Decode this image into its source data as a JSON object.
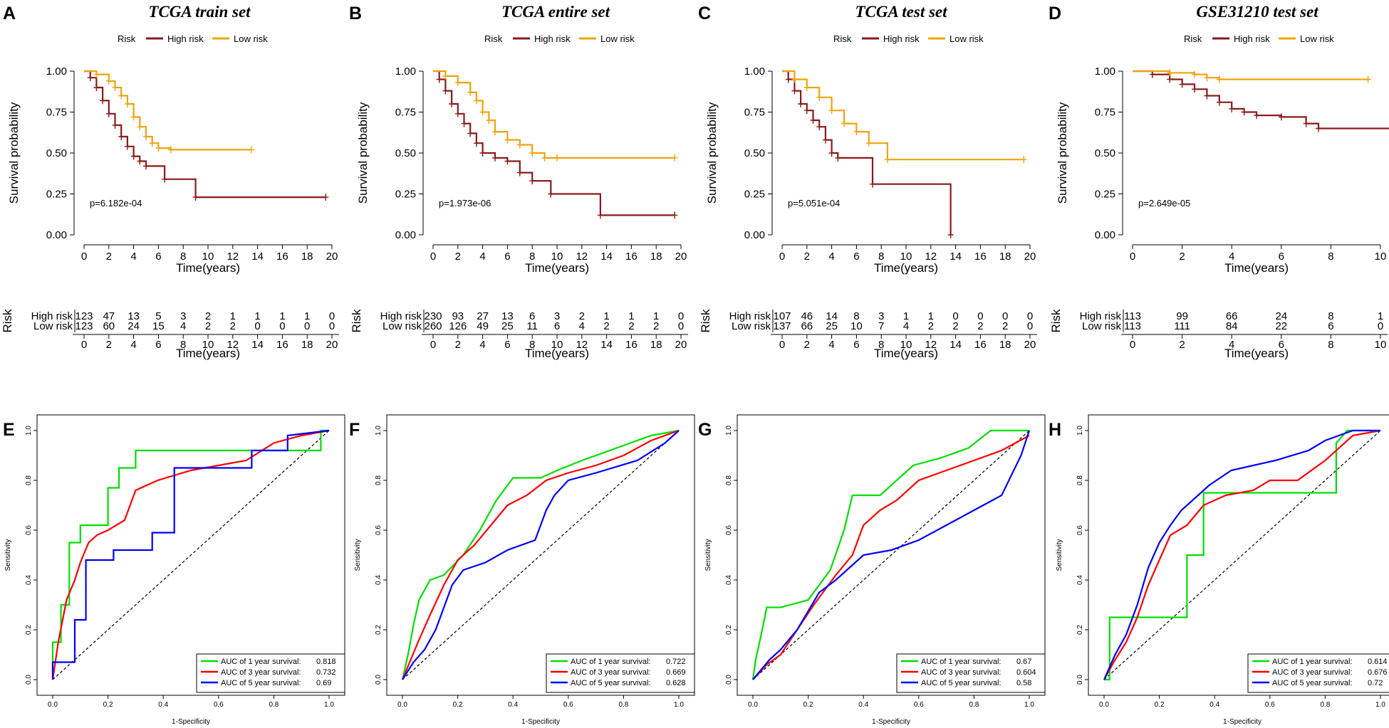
{
  "colors": {
    "high": "#8b1a1a",
    "low": "#f0a30a",
    "green": "#00e000",
    "red": "#ff0000",
    "blue": "#0000ff",
    "ink": "#000000"
  },
  "chart_data": [
    {
      "type": "line",
      "panel": "A",
      "title": "TCGA train set",
      "legend": {
        "title": "Risk",
        "high": "High risk",
        "low": "Low risk"
      },
      "xlabel": "Time(years)",
      "ylabel": "Survival probability",
      "xlim": [
        0,
        20
      ],
      "ylim": [
        0,
        1
      ],
      "xticks": [
        0,
        2,
        4,
        6,
        8,
        10,
        12,
        14,
        16,
        18,
        20
      ],
      "yticks": [
        "0.00",
        "0.25",
        "0.50",
        "0.75",
        "1.00"
      ],
      "pvalue": "p=6.182e-04",
      "series": [
        {
          "name": "High risk",
          "x": [
            0,
            0.5,
            1,
            1.5,
            2,
            2.5,
            3,
            3.5,
            4,
            4.5,
            5,
            6.5,
            9,
            19.5
          ],
          "y": [
            1,
            0.96,
            0.9,
            0.82,
            0.74,
            0.67,
            0.6,
            0.54,
            0.48,
            0.45,
            0.42,
            0.34,
            0.23,
            0.23
          ]
        },
        {
          "name": "Low risk",
          "x": [
            0,
            1,
            2,
            2.5,
            3,
            3.5,
            4,
            4.5,
            5,
            5.5,
            6,
            7,
            13.5
          ],
          "y": [
            1,
            0.98,
            0.94,
            0.9,
            0.85,
            0.8,
            0.72,
            0.66,
            0.6,
            0.56,
            0.53,
            0.52,
            0.52
          ]
        }
      ],
      "risk_table": {
        "label": "Risk",
        "high_label": "High risk",
        "low_label": "Low risk",
        "times": [
          0,
          2,
          4,
          6,
          8,
          10,
          12,
          14,
          16,
          18,
          20
        ],
        "high": [
          "123",
          "47",
          "13",
          "5",
          "3",
          "2",
          "1",
          "1",
          "1",
          "1",
          "0"
        ],
        "low": [
          "123",
          "60",
          "24",
          "15",
          "4",
          "2",
          "2",
          "0",
          "0",
          "0",
          "0"
        ],
        "xlabel": "Time(years)"
      }
    },
    {
      "type": "line",
      "panel": "B",
      "title": "TCGA entire set",
      "legend": {
        "title": "Risk",
        "high": "High risk",
        "low": "Low risk"
      },
      "xlabel": "Time(years)",
      "ylabel": "Survival probability",
      "xlim": [
        0,
        20
      ],
      "ylim": [
        0,
        1
      ],
      "xticks": [
        0,
        2,
        4,
        6,
        8,
        10,
        12,
        14,
        16,
        18,
        20
      ],
      "yticks": [
        "0.00",
        "0.25",
        "0.50",
        "0.75",
        "1.00"
      ],
      "pvalue": "p=1.973e-06",
      "series": [
        {
          "name": "High risk",
          "x": [
            0,
            0.5,
            1,
            1.5,
            2,
            2.5,
            3,
            3.5,
            4,
            5,
            6,
            7,
            8,
            9.5,
            13.5,
            19.5
          ],
          "y": [
            1,
            0.95,
            0.88,
            0.8,
            0.74,
            0.68,
            0.62,
            0.56,
            0.5,
            0.47,
            0.45,
            0.38,
            0.33,
            0.25,
            0.12,
            0.12
          ]
        },
        {
          "name": "Low risk",
          "x": [
            0,
            1,
            2,
            3,
            3.5,
            4,
            4.5,
            5,
            6,
            7,
            8,
            9,
            10,
            19.5
          ],
          "y": [
            1,
            0.97,
            0.93,
            0.87,
            0.82,
            0.75,
            0.7,
            0.63,
            0.58,
            0.55,
            0.5,
            0.47,
            0.47,
            0.47
          ]
        }
      ],
      "risk_table": {
        "label": "Risk",
        "high_label": "High risk",
        "low_label": "Low risk",
        "times": [
          0,
          2,
          4,
          6,
          8,
          10,
          12,
          14,
          16,
          18,
          20
        ],
        "high": [
          "230",
          "93",
          "27",
          "13",
          "6",
          "3",
          "2",
          "1",
          "1",
          "1",
          "0"
        ],
        "low": [
          "260",
          "126",
          "49",
          "25",
          "11",
          "6",
          "4",
          "2",
          "2",
          "2",
          "0"
        ],
        "xlabel": "Time(years)"
      }
    },
    {
      "type": "line",
      "panel": "C",
      "title": "TCGA test set",
      "legend": {
        "title": "Risk",
        "high": "High risk",
        "low": "Low risk"
      },
      "xlabel": "Time(years)",
      "ylabel": "Survival probability",
      "xlim": [
        0,
        20
      ],
      "ylim": [
        0,
        1
      ],
      "xticks": [
        0,
        2,
        4,
        6,
        8,
        10,
        12,
        14,
        16,
        18,
        20
      ],
      "yticks": [
        "0.00",
        "0.25",
        "0.50",
        "0.75",
        "1.00"
      ],
      "pvalue": "p=5.051e-04",
      "series": [
        {
          "name": "High risk",
          "x": [
            0,
            0.5,
            1,
            1.5,
            2,
            2.5,
            3,
            3.5,
            4,
            4.5,
            7.3,
            13.6
          ],
          "y": [
            1,
            0.95,
            0.88,
            0.8,
            0.76,
            0.7,
            0.66,
            0.58,
            0.5,
            0.47,
            0.31,
            0
          ]
        },
        {
          "name": "Low risk",
          "x": [
            0,
            1,
            2,
            3,
            4,
            5,
            6,
            7,
            8.5,
            19.5
          ],
          "y": [
            1,
            0.95,
            0.9,
            0.84,
            0.76,
            0.68,
            0.63,
            0.56,
            0.46,
            0.46
          ]
        }
      ],
      "risk_table": {
        "label": "Risk",
        "high_label": "High risk",
        "low_label": "Low risk",
        "times": [
          0,
          2,
          4,
          6,
          8,
          10,
          12,
          14,
          16,
          18,
          20
        ],
        "high": [
          "107",
          "46",
          "14",
          "8",
          "3",
          "1",
          "1",
          "0",
          "0",
          "0",
          "0"
        ],
        "low": [
          "137",
          "66",
          "25",
          "10",
          "7",
          "4",
          "2",
          "2",
          "2",
          "2",
          "0"
        ],
        "xlabel": "Time(years)"
      }
    },
    {
      "type": "line",
      "panel": "D",
      "title": "GSE31210 test set",
      "legend": {
        "title": "Risk",
        "high": "High risk",
        "low": "Low risk"
      },
      "xlabel": "Time(years)",
      "ylabel": "Survival probability",
      "xlim": [
        0,
        10
      ],
      "ylim": [
        0,
        1
      ],
      "xticks": [
        0,
        2,
        4,
        6,
        8,
        10
      ],
      "yticks": [
        "0.00",
        "0.25",
        "0.50",
        "0.75",
        "1.00"
      ],
      "pvalue": "p=2.649e-05",
      "series": [
        {
          "name": "High risk",
          "x": [
            0,
            0.8,
            1.5,
            2,
            2.5,
            3,
            3.5,
            4,
            4.5,
            5,
            6,
            7,
            7.5,
            10.5
          ],
          "y": [
            1,
            0.98,
            0.95,
            0.92,
            0.89,
            0.85,
            0.81,
            0.77,
            0.75,
            0.73,
            0.72,
            0.68,
            0.65,
            0.64
          ]
        },
        {
          "name": "Low risk",
          "x": [
            0,
            1.5,
            2.5,
            3,
            3.5,
            9.5
          ],
          "y": [
            1,
            0.99,
            0.98,
            0.96,
            0.95,
            0.95
          ]
        }
      ],
      "risk_table": {
        "label": "Risk",
        "high_label": "High risk",
        "low_label": "Low risk",
        "times": [
          0,
          2,
          4,
          6,
          8,
          10
        ],
        "high": [
          "113",
          "99",
          "66",
          "24",
          "8",
          "1"
        ],
        "low": [
          "113",
          "111",
          "84",
          "22",
          "6",
          "0"
        ],
        "xlabel": "Time(years)"
      }
    },
    {
      "type": "line",
      "panel": "E",
      "xlabel": "1-Specificity",
      "ylabel": "Sensitivity",
      "xlim": [
        0,
        1
      ],
      "ylim": [
        0,
        1
      ],
      "ticks": [
        "0.0",
        "0.2",
        "0.4",
        "0.6",
        "0.8",
        "1.0"
      ],
      "series": [
        {
          "name": "AUC of 1 year survival:",
          "auc": "0.818",
          "x": [
            0,
            0,
            0.03,
            0.03,
            0.06,
            0.06,
            0.1,
            0.1,
            0.2,
            0.2,
            0.24,
            0.24,
            0.3,
            0.3,
            0.97,
            0.97,
            1
          ],
          "y": [
            0,
            0.15,
            0.15,
            0.3,
            0.3,
            0.55,
            0.55,
            0.62,
            0.62,
            0.77,
            0.77,
            0.85,
            0.85,
            0.92,
            0.92,
            1,
            1
          ]
        },
        {
          "name": "AUC of 3 year survival:",
          "auc": "0.732",
          "x": [
            0,
            0.02,
            0.05,
            0.08,
            0.1,
            0.13,
            0.16,
            0.2,
            0.26,
            0.3,
            0.38,
            0.5,
            0.6,
            0.7,
            0.8,
            0.9,
            1
          ],
          "y": [
            0,
            0.15,
            0.32,
            0.4,
            0.47,
            0.55,
            0.58,
            0.6,
            0.64,
            0.76,
            0.8,
            0.84,
            0.86,
            0.88,
            0.95,
            0.98,
            1
          ]
        },
        {
          "name": "AUC of 5 year survival:",
          "auc": "0.69",
          "x": [
            0,
            0,
            0.08,
            0.08,
            0.12,
            0.12,
            0.22,
            0.22,
            0.36,
            0.36,
            0.44,
            0.44,
            0.72,
            0.72,
            0.85,
            0.85,
            1
          ],
          "y": [
            0,
            0.07,
            0.07,
            0.24,
            0.24,
            0.48,
            0.48,
            0.52,
            0.52,
            0.59,
            0.59,
            0.85,
            0.85,
            0.92,
            0.92,
            0.98,
            1
          ]
        }
      ]
    },
    {
      "type": "line",
      "panel": "F",
      "xlabel": "1-Specificity",
      "ylabel": "Sensitivity",
      "xlim": [
        0,
        1
      ],
      "ylim": [
        0,
        1
      ],
      "ticks": [
        "0.0",
        "0.2",
        "0.4",
        "0.6",
        "0.8",
        "1.0"
      ],
      "series": [
        {
          "name": "AUC of 1 year survival:",
          "auc": "0.722",
          "x": [
            0,
            0.02,
            0.04,
            0.06,
            0.1,
            0.15,
            0.22,
            0.28,
            0.34,
            0.4,
            0.5,
            0.56,
            0.65,
            0.8,
            0.9,
            1
          ],
          "y": [
            0,
            0.1,
            0.22,
            0.32,
            0.4,
            0.42,
            0.5,
            0.6,
            0.72,
            0.81,
            0.81,
            0.84,
            0.88,
            0.94,
            0.98,
            1
          ]
        },
        {
          "name": "AUC of 3 year survival:",
          "auc": "0.669",
          "x": [
            0,
            0.03,
            0.06,
            0.1,
            0.15,
            0.2,
            0.26,
            0.32,
            0.38,
            0.45,
            0.52,
            0.6,
            0.7,
            0.8,
            0.9,
            1
          ],
          "y": [
            0,
            0.08,
            0.16,
            0.26,
            0.38,
            0.48,
            0.54,
            0.62,
            0.7,
            0.74,
            0.8,
            0.83,
            0.86,
            0.9,
            0.96,
            1
          ]
        },
        {
          "name": "AUC of 5 year survival:",
          "auc": "0.628",
          "x": [
            0,
            0.04,
            0.08,
            0.12,
            0.18,
            0.22,
            0.3,
            0.38,
            0.48,
            0.52,
            0.55,
            0.6,
            0.7,
            0.85,
            0.95,
            1
          ],
          "y": [
            0,
            0.07,
            0.12,
            0.2,
            0.38,
            0.44,
            0.47,
            0.52,
            0.56,
            0.68,
            0.74,
            0.8,
            0.83,
            0.88,
            0.95,
            1
          ]
        }
      ]
    },
    {
      "type": "line",
      "panel": "G",
      "xlabel": "1-Specificity",
      "ylabel": "Sensitivity",
      "xlim": [
        0,
        1
      ],
      "ylim": [
        0,
        1
      ],
      "ticks": [
        "0.0",
        "0.2",
        "0.4",
        "0.6",
        "0.8",
        "1.0"
      ],
      "series": [
        {
          "name": "AUC of 1 year survival:",
          "auc": "0.67",
          "x": [
            0,
            0.01,
            0.03,
            0.05,
            0.1,
            0.2,
            0.28,
            0.33,
            0.36,
            0.46,
            0.58,
            0.68,
            0.78,
            0.86,
            1
          ],
          "y": [
            0,
            0.08,
            0.18,
            0.29,
            0.29,
            0.32,
            0.44,
            0.6,
            0.74,
            0.74,
            0.86,
            0.89,
            0.93,
            1,
            1
          ]
        },
        {
          "name": "AUC of 3 year survival:",
          "auc": "0.604",
          "x": [
            0,
            0.05,
            0.1,
            0.16,
            0.22,
            0.3,
            0.36,
            0.4,
            0.46,
            0.52,
            0.6,
            0.7,
            0.8,
            0.9,
            1
          ],
          "y": [
            0,
            0.06,
            0.1,
            0.2,
            0.3,
            0.42,
            0.5,
            0.62,
            0.68,
            0.72,
            0.8,
            0.84,
            0.88,
            0.92,
            0.98
          ]
        },
        {
          "name": "AUC of 5 year survival:",
          "auc": "0.58",
          "x": [
            0,
            0.06,
            0.1,
            0.16,
            0.24,
            0.3,
            0.36,
            0.4,
            0.5,
            0.6,
            0.7,
            0.8,
            0.9,
            0.97,
            1
          ],
          "y": [
            0,
            0.08,
            0.12,
            0.2,
            0.35,
            0.4,
            0.46,
            0.5,
            0.52,
            0.56,
            0.62,
            0.68,
            0.74,
            0.9,
            1
          ]
        }
      ]
    },
    {
      "type": "line",
      "panel": "H",
      "xlabel": "1-Specificity",
      "ylabel": "Sensitivity",
      "xlim": [
        0,
        1
      ],
      "ylim": [
        0,
        1
      ],
      "ticks": [
        "0.0",
        "0.2",
        "0.4",
        "0.6",
        "0.8",
        "1.0"
      ],
      "series": [
        {
          "name": "AUC of 1 year survival:",
          "auc": "0.614",
          "x": [
            0,
            0.02,
            0.02,
            0.3,
            0.3,
            0.36,
            0.36,
            0.39,
            0.39,
            0.84,
            0.84,
            0.88,
            1
          ],
          "y": [
            0,
            0,
            0.25,
            0.25,
            0.5,
            0.5,
            0.75,
            0.75,
            0.75,
            0.75,
            0.95,
            1,
            1
          ]
        },
        {
          "name": "AUC of 3 year survival:",
          "auc": "0.676",
          "x": [
            0,
            0.04,
            0.08,
            0.12,
            0.16,
            0.2,
            0.24,
            0.3,
            0.36,
            0.44,
            0.54,
            0.6,
            0.7,
            0.8,
            0.9,
            1
          ],
          "y": [
            0,
            0.08,
            0.15,
            0.25,
            0.38,
            0.48,
            0.58,
            0.62,
            0.7,
            0.74,
            0.76,
            0.8,
            0.8,
            0.88,
            0.98,
            1
          ]
        },
        {
          "name": "AUC of 5 year survival:",
          "auc": "0.72",
          "x": [
            0,
            0.04,
            0.08,
            0.12,
            0.16,
            0.2,
            0.24,
            0.28,
            0.32,
            0.38,
            0.46,
            0.54,
            0.62,
            0.74,
            0.8,
            0.9,
            1
          ],
          "y": [
            0,
            0.1,
            0.18,
            0.3,
            0.45,
            0.55,
            0.62,
            0.68,
            0.72,
            0.78,
            0.84,
            0.86,
            0.88,
            0.92,
            0.96,
            1,
            1
          ]
        }
      ]
    }
  ]
}
